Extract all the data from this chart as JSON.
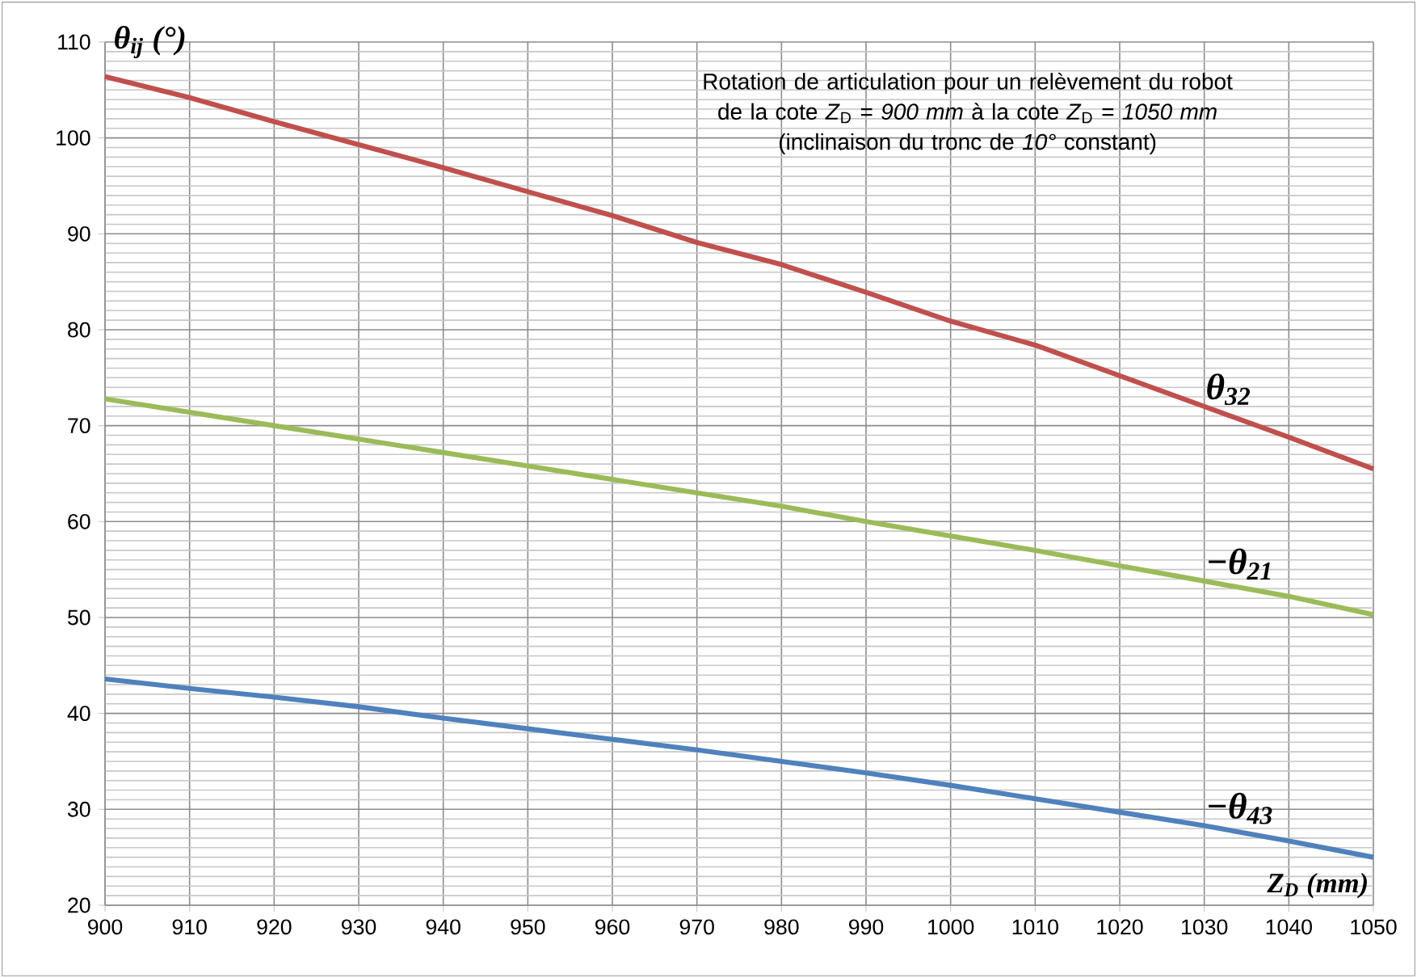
{
  "chart_data": {
    "type": "line",
    "title": "Rotation de articulation pour un relèvement du robot de la cote *Z*$_{D}$ = *900 mm* à la cote *Z*$_{D}$ = *1050 mm*",
    "subtitle": "(inclinaison du tronc de *10°* constant)",
    "xlabel": "Z$_{D}$ (mm)",
    "ylabel": "θ$_{ij}$ (°)",
    "x": [
      900,
      910,
      920,
      930,
      940,
      950,
      960,
      970,
      980,
      990,
      1000,
      1010,
      1020,
      1030,
      1040,
      1050
    ],
    "series": [
      {
        "name": "θ$_{32}$",
        "color": "#c0504d",
        "values": [
          106.4,
          104.2,
          101.7,
          99.3,
          96.9,
          94.4,
          91.9,
          89.1,
          86.8,
          83.9,
          80.9,
          78.4,
          75.2,
          72.0,
          68.8,
          65.5
        ]
      },
      {
        "name": "−θ$_{21}$",
        "color": "#9bbb59",
        "values": [
          72.8,
          71.4,
          70.0,
          68.6,
          67.2,
          65.8,
          64.4,
          63.0,
          61.6,
          60.0,
          58.5,
          57.0,
          55.4,
          53.8,
          52.2,
          50.3
        ]
      },
      {
        "name": "−θ$_{43}$",
        "color": "#4f81bd",
        "values": [
          43.6,
          42.6,
          41.7,
          40.7,
          39.5,
          38.4,
          37.3,
          36.2,
          35.0,
          33.8,
          32.5,
          31.1,
          29.7,
          28.3,
          26.7,
          25.0
        ]
      }
    ],
    "xlim": [
      900,
      1050
    ],
    "ylim": [
      20,
      110
    ],
    "xticks": [
      900,
      910,
      920,
      930,
      940,
      950,
      960,
      970,
      980,
      990,
      1000,
      1010,
      1020,
      1030,
      1040,
      1050
    ],
    "yticks": [
      20,
      30,
      40,
      50,
      60,
      70,
      80,
      90,
      100,
      110
    ],
    "grid": true,
    "marker": "none",
    "line_style": "solid"
  }
}
